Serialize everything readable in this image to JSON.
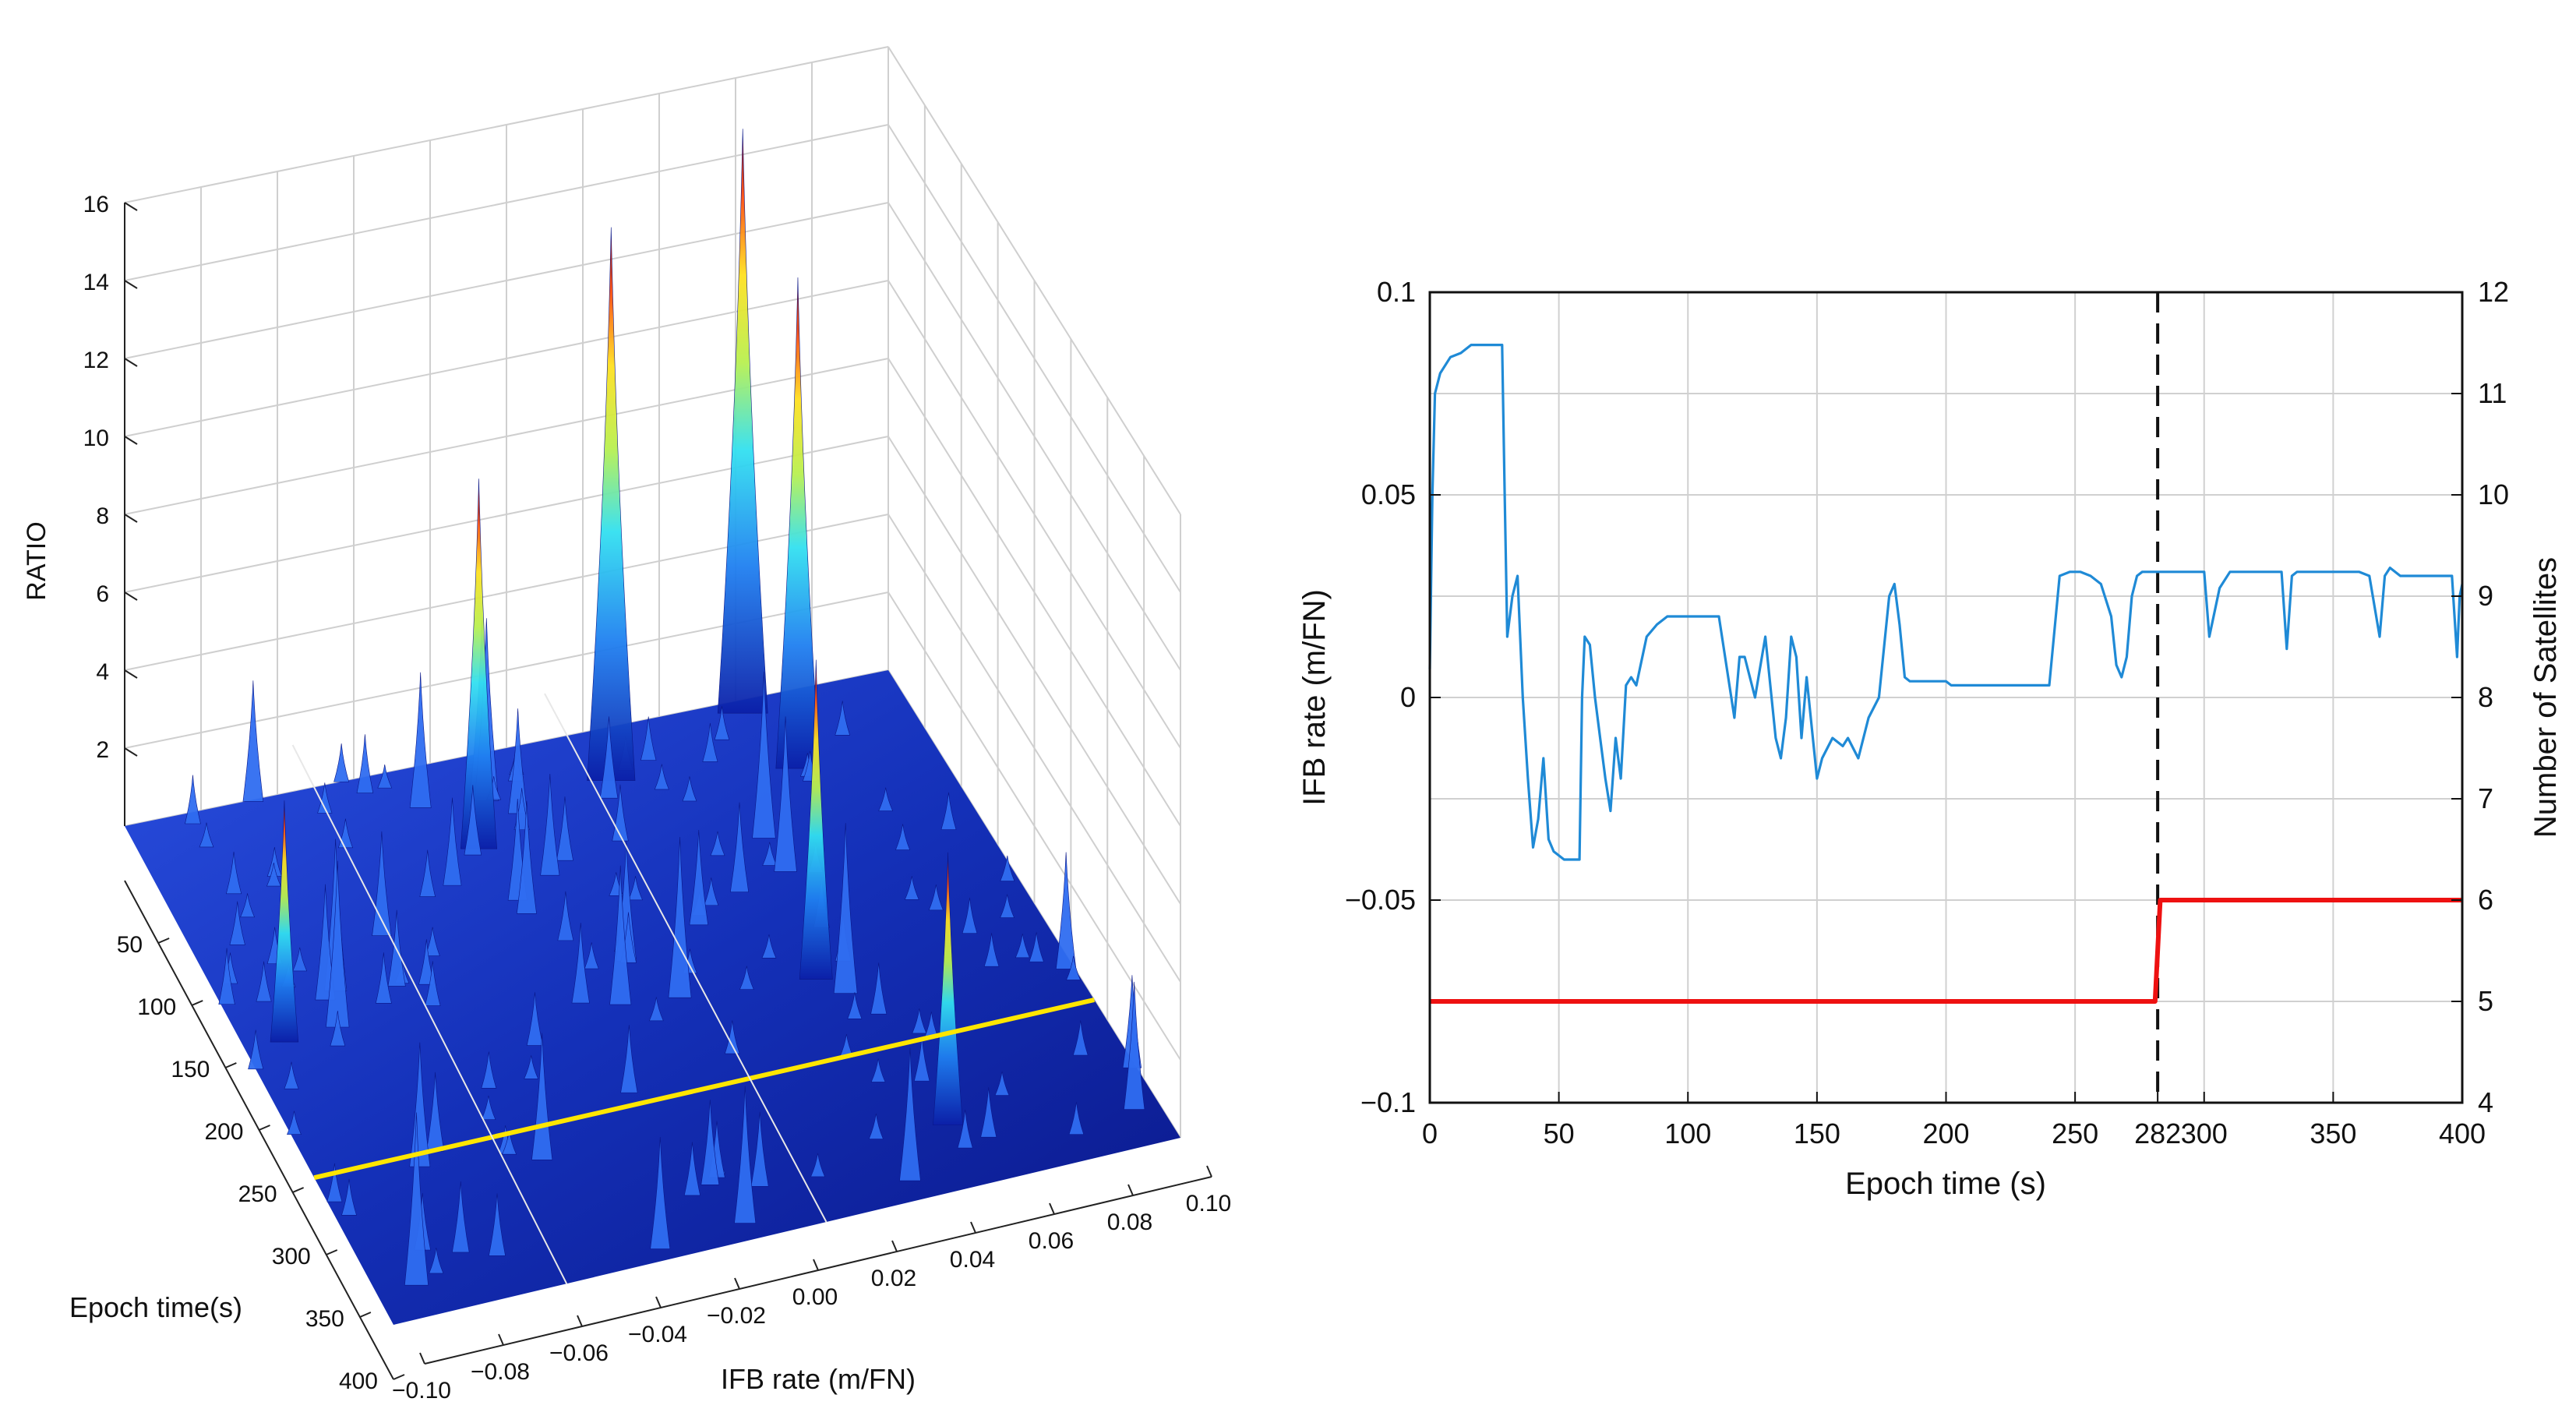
{
  "chart_data": [
    {
      "type": "surface",
      "x_label": "IFB rate (m/FN)",
      "y_label": "Epoch time(s)",
      "z_label": "RATIO",
      "x_ticks": [
        "−0.10",
        "−0.08",
        "−0.06",
        "−0.04",
        "−0.02",
        "0.00",
        "0.02",
        "0.04",
        "0.06",
        "0.08",
        "0.10"
      ],
      "y_ticks": [
        "50",
        "100",
        "150",
        "200",
        "250",
        "300",
        "350",
        "400"
      ],
      "z_ticks": [
        "2",
        "4",
        "6",
        "8",
        "10",
        "12",
        "14",
        "16"
      ],
      "xlim": [
        -0.1,
        0.1
      ],
      "ylim": [
        0,
        400
      ],
      "zlim": [
        0,
        16
      ],
      "colormap": "jet",
      "highlight_line": {
        "color": "#ffe600",
        "epoch": 282
      },
      "peaks": [
        {
          "ifb": 0.06,
          "epoch": 10,
          "ratio": 15.0
        },
        {
          "ifb": 0.02,
          "epoch": 40,
          "ratio": 14.2
        },
        {
          "ifb": 0.065,
          "epoch": 60,
          "ratio": 12.6
        },
        {
          "ifb": -0.02,
          "epoch": 70,
          "ratio": 9.5
        },
        {
          "ifb": 0.04,
          "epoch": 220,
          "ratio": 8.2
        },
        {
          "ifb": 0.05,
          "epoch": 350,
          "ratio": 7.0
        },
        {
          "ifb": -0.09,
          "epoch": 180,
          "ratio": 6.2
        }
      ]
    },
    {
      "type": "line",
      "xlabel": "Epoch time (s)",
      "ylabel": "IFB rate (m/FN)",
      "y2label": "Number of Satellites",
      "xlim": [
        0,
        400
      ],
      "ylim": [
        -0.1,
        0.1
      ],
      "y2lim": [
        4,
        12
      ],
      "x_ticks": [
        "0",
        "50",
        "100",
        "150",
        "200",
        "250",
        "282",
        "300",
        "350",
        "400"
      ],
      "y_ticks": [
        "0.1",
        "0.05",
        "0",
        "−0.05",
        "−0.1"
      ],
      "y2_ticks": [
        "12",
        "11",
        "10",
        "9",
        "8",
        "7",
        "6",
        "5",
        "4"
      ],
      "grid": true,
      "vline": {
        "x": 282,
        "style": "dashed"
      },
      "colors": {
        "ifb": "#1f8ad6",
        "satellites": "#ee1111"
      },
      "series": [
        {
          "axis": "left",
          "x": [
            0,
            1,
            2,
            4,
            8,
            12,
            16,
            20,
            24,
            28,
            29,
            30,
            32,
            34,
            36,
            38,
            40,
            42,
            44,
            46,
            48,
            50,
            52,
            56,
            58,
            59,
            60,
            62,
            64,
            66,
            68,
            70,
            72,
            74,
            76,
            78,
            80,
            84,
            88,
            92,
            96,
            100,
            104,
            108,
            112,
            118,
            120,
            122,
            126,
            130,
            134,
            136,
            138,
            140,
            142,
            144,
            146,
            150,
            152,
            156,
            160,
            162,
            166,
            170,
            174,
            178,
            180,
            182,
            184,
            186,
            190,
            196,
            200,
            202,
            210,
            220,
            240,
            244,
            248,
            252,
            256,
            260,
            264,
            266,
            268,
            270,
            272,
            274,
            276,
            278,
            282,
            290,
            296,
            300,
            302,
            306,
            310,
            320,
            330,
            332,
            334,
            336,
            340,
            350,
            360,
            364,
            368,
            370,
            372,
            376,
            380,
            388,
            392,
            396,
            398,
            399,
            400
          ],
          "y": [
            0.007,
            0.05,
            0.075,
            0.08,
            0.084,
            0.085,
            0.087,
            0.087,
            0.087,
            0.087,
            0.05,
            0.015,
            0.025,
            0.03,
            0.0,
            -0.02,
            -0.037,
            -0.03,
            -0.015,
            -0.035,
            -0.038,
            -0.039,
            -0.04,
            -0.04,
            -0.04,
            0.0,
            0.015,
            0.013,
            0.0,
            -0.01,
            -0.02,
            -0.028,
            -0.01,
            -0.02,
            0.003,
            0.005,
            0.003,
            0.015,
            0.018,
            0.02,
            0.02,
            0.02,
            0.02,
            0.02,
            0.02,
            -0.005,
            0.01,
            0.01,
            0.0,
            0.015,
            -0.01,
            -0.015,
            -0.005,
            0.015,
            0.01,
            -0.01,
            0.005,
            -0.02,
            -0.015,
            -0.01,
            -0.012,
            -0.01,
            -0.015,
            -0.005,
            0.0,
            0.025,
            0.028,
            0.018,
            0.005,
            0.004,
            0.004,
            0.004,
            0.004,
            0.003,
            0.003,
            0.003,
            0.003,
            0.03,
            0.031,
            0.031,
            0.03,
            0.028,
            0.02,
            0.008,
            0.005,
            0.01,
            0.025,
            0.03,
            0.031,
            0.031,
            0.031,
            0.031,
            0.031,
            0.031,
            0.015,
            0.027,
            0.031,
            0.031,
            0.031,
            0.012,
            0.03,
            0.031,
            0.031,
            0.031,
            0.031,
            0.03,
            0.015,
            0.03,
            0.032,
            0.03,
            0.03,
            0.03,
            0.03,
            0.03,
            0.01,
            0.025,
            0.028
          ]
        },
        {
          "axis": "right",
          "x": [
            0,
            281,
            283,
            400
          ],
          "y": [
            5,
            5,
            6,
            6
          ]
        }
      ]
    }
  ]
}
